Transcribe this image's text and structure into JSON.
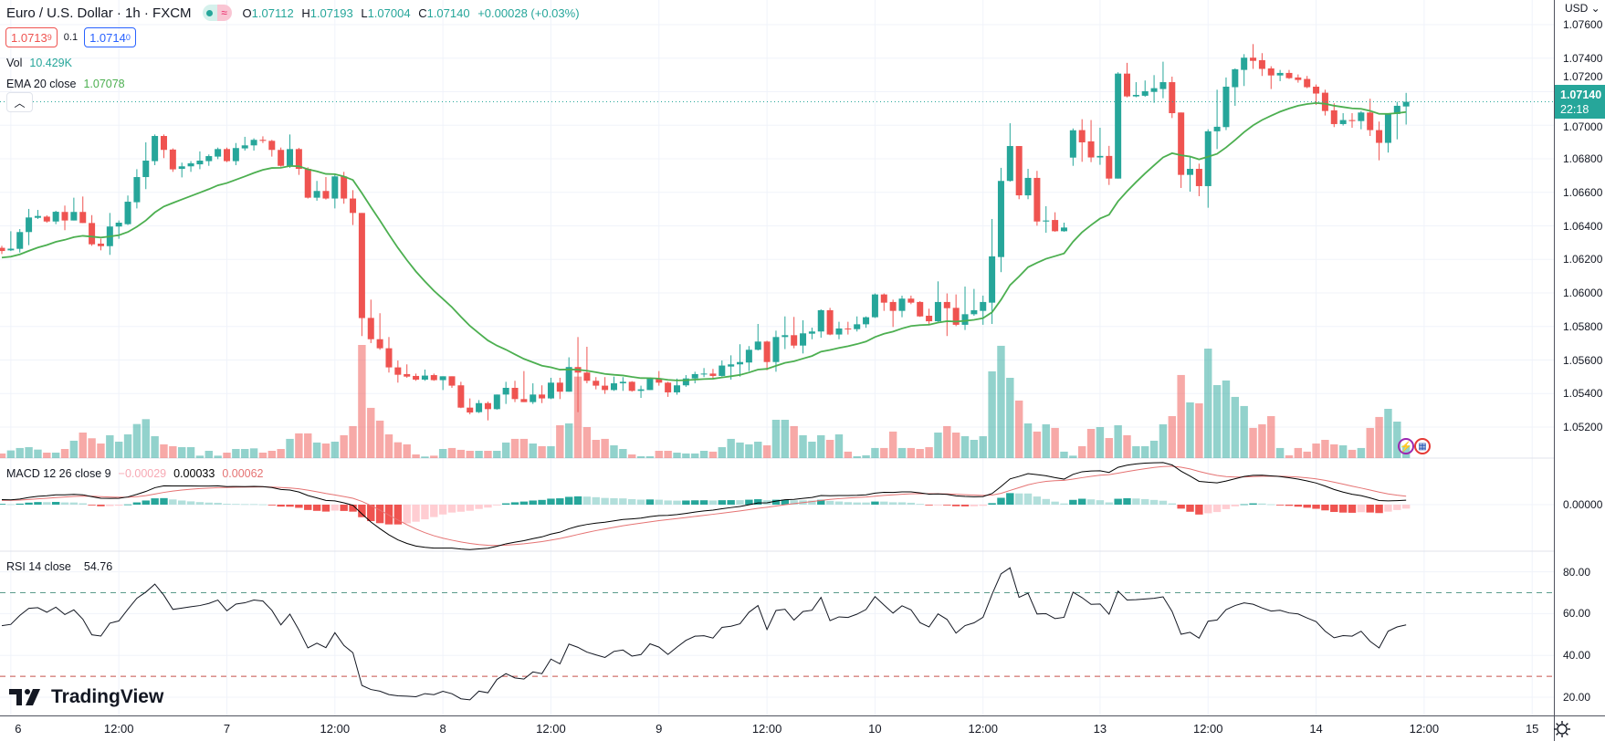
{
  "header": {
    "symbol_title": "Euro / U.S. Dollar · 1h · FXCM",
    "badge_alt_symbol": "≈",
    "ohlc": {
      "o_label": "O",
      "o": "1.07112",
      "h_label": "H",
      "h": "1.07193",
      "l_label": "L",
      "l": "1.07004",
      "c_label": "C",
      "c": "1.07140",
      "change": "+0.00028 (+0.03%)"
    },
    "bid_main": "1.0713",
    "bid_pip": "9",
    "spread": "0.1",
    "ask_main": "1.0714",
    "ask_pip": "0",
    "currency": "USD ⌄"
  },
  "legends": {
    "vol_label": "Vol",
    "vol_value": "10.429K",
    "ema_label": "EMA 20 close",
    "ema_value": "1.07078",
    "macd_label": "MACD 12 26 close 9",
    "macd_hist": "−0.00029",
    "macd_value": "0.00033",
    "macd_signal": "0.00062",
    "rsi_label": "RSI 14 close",
    "rsi_value": "54.76",
    "collapse_icon": "chevron-up"
  },
  "current_price": {
    "price": "1.07140",
    "countdown": "22:18"
  },
  "watermark": "TradingView",
  "colors": {
    "up": "#26a69a",
    "down": "#ef5350",
    "ema": "#4caf50",
    "macd": "#000000",
    "signal": "#e57373",
    "ask": "#2962ff"
  },
  "chart_data": {
    "type": "candlestick",
    "title": "Euro / U.S. Dollar · 1h · FXCM",
    "price_axis": {
      "min": 1.052,
      "max": 1.076,
      "step": 0.002,
      "ticks": [
        "1.07600",
        "1.07400",
        "1.07200",
        "1.07000",
        "1.06800",
        "1.06600",
        "1.06400",
        "1.06200",
        "1.06000",
        "1.05800",
        "1.05600",
        "1.05400",
        "1.05200"
      ]
    },
    "time_ticks": [
      {
        "label": "6",
        "bar": 1
      },
      {
        "label": "12:00",
        "bar": 13
      },
      {
        "label": "7",
        "bar": 25
      },
      {
        "label": "12:00",
        "bar": 37
      },
      {
        "label": "8",
        "bar": 49
      },
      {
        "label": "12:00",
        "bar": 61
      },
      {
        "label": "9",
        "bar": 73
      },
      {
        "label": "12:00",
        "bar": 85
      },
      {
        "label": "10",
        "bar": 97
      },
      {
        "label": "12:00",
        "bar": 109
      },
      {
        "label": "13",
        "bar": 122
      },
      {
        "label": "12:00",
        "bar": 134
      },
      {
        "label": "14",
        "bar": 146
      },
      {
        "label": "12:00",
        "bar": 158
      },
      {
        "label": "15",
        "bar": 170
      }
    ],
    "ohlc": [
      [
        1.06269,
        1.06281,
        1.06232,
        1.0625
      ],
      [
        1.06254,
        1.06368,
        1.0625,
        1.06264
      ],
      [
        1.06263,
        1.06381,
        1.06241,
        1.06363
      ],
      [
        1.06363,
        1.06501,
        1.06285,
        1.0645
      ],
      [
        1.06448,
        1.06495,
        1.06441,
        1.06459
      ],
      [
        1.06455,
        1.06463,
        1.06419,
        1.06426
      ],
      [
        1.06426,
        1.0649,
        1.0641,
        1.06484
      ],
      [
        1.06483,
        1.06521,
        1.06374,
        1.06432
      ],
      [
        1.06432,
        1.06568,
        1.06432,
        1.06483
      ],
      [
        1.06483,
        1.06575,
        1.06417,
        1.06417
      ],
      [
        1.06417,
        1.06464,
        1.06281,
        1.0629
      ],
      [
        1.06294,
        1.06323,
        1.06254,
        1.06279
      ],
      [
        1.06279,
        1.06477,
        1.06227,
        1.06396
      ],
      [
        1.06396,
        1.06432,
        1.06323,
        1.06419
      ],
      [
        1.0641,
        1.06581,
        1.06405,
        1.06544
      ],
      [
        1.06541,
        1.06738,
        1.06504,
        1.06691
      ],
      [
        1.06691,
        1.06898,
        1.06619,
        1.06789
      ],
      [
        1.06786,
        1.06945,
        1.06762,
        1.06936
      ],
      [
        1.06936,
        1.06945,
        1.06804,
        1.06853
      ],
      [
        1.06855,
        1.06862,
        1.06722,
        1.06737
      ],
      [
        1.0674,
        1.06777,
        1.06689,
        1.06755
      ],
      [
        1.06755,
        1.06786,
        1.06722,
        1.06773
      ],
      [
        1.06767,
        1.06844,
        1.06738,
        1.06789
      ],
      [
        1.06786,
        1.06826,
        1.06758,
        1.06816
      ],
      [
        1.06813,
        1.06867,
        1.06798,
        1.06858
      ],
      [
        1.06858,
        1.06867,
        1.0678,
        1.06786
      ],
      [
        1.06786,
        1.06894,
        1.06762,
        1.06864
      ],
      [
        1.06862,
        1.06931,
        1.06849,
        1.0688
      ],
      [
        1.0688,
        1.06922,
        1.06849,
        1.06913
      ],
      [
        1.06913,
        1.06934,
        1.06894,
        1.06907
      ],
      [
        1.06907,
        1.06913,
        1.06813,
        1.06853
      ],
      [
        1.06853,
        1.06867,
        1.06753,
        1.06758
      ],
      [
        1.06758,
        1.06945,
        1.06746,
        1.06858
      ],
      [
        1.06858,
        1.06865,
        1.06704,
        1.0674
      ],
      [
        1.0674,
        1.06749,
        1.06563,
        1.06568
      ],
      [
        1.06568,
        1.06668,
        1.0655,
        1.06608
      ],
      [
        1.06608,
        1.06691,
        1.06557,
        1.06563
      ],
      [
        1.06563,
        1.06713,
        1.06504,
        1.06695
      ],
      [
        1.06695,
        1.06722,
        1.06532,
        1.06563
      ],
      [
        1.06563,
        1.06613,
        1.06405,
        1.06477
      ],
      [
        1.06477,
        1.06477,
        1.05743,
        1.0585
      ],
      [
        1.05851,
        1.0596,
        1.05701,
        1.05724
      ],
      [
        1.05724,
        1.05879,
        1.05661,
        1.0567
      ],
      [
        1.0567,
        1.05737,
        1.05525,
        1.05556
      ],
      [
        1.05556,
        1.05597,
        1.05465,
        1.05512
      ],
      [
        1.05516,
        1.05574,
        1.05494,
        1.05501
      ],
      [
        1.05505,
        1.05519,
        1.05476,
        1.05483
      ],
      [
        1.05483,
        1.05543,
        1.05476,
        1.05507
      ],
      [
        1.0551,
        1.05519,
        1.05476,
        1.0548
      ],
      [
        1.0548,
        1.05503,
        1.05421,
        1.05503
      ],
      [
        1.05503,
        1.05503,
        1.05434,
        1.05447
      ],
      [
        1.05449,
        1.0547,
        1.05313,
        1.05316
      ],
      [
        1.05316,
        1.05371,
        1.05276,
        1.05287
      ],
      [
        1.05289,
        1.05361,
        1.05284,
        1.05343
      ],
      [
        1.05343,
        1.05352,
        1.0524,
        1.05307
      ],
      [
        1.05307,
        1.05394,
        1.05304,
        1.05394
      ],
      [
        1.05394,
        1.0547,
        1.05338,
        1.05434
      ],
      [
        1.05434,
        1.05476,
        1.05349,
        1.05367
      ],
      [
        1.05367,
        1.05534,
        1.05349,
        1.05349
      ],
      [
        1.05349,
        1.05461,
        1.05338,
        1.05394
      ],
      [
        1.05394,
        1.05449,
        1.05343,
        1.05371
      ],
      [
        1.05371,
        1.05494,
        1.05367,
        1.05465
      ],
      [
        1.05465,
        1.05494,
        1.05367,
        1.05411
      ],
      [
        1.05411,
        1.05616,
        1.05411,
        1.05558
      ],
      [
        1.05558,
        1.05737,
        1.05289,
        1.05525
      ],
      [
        1.05525,
        1.05679,
        1.05461,
        1.05476
      ],
      [
        1.05476,
        1.05498,
        1.05425,
        1.05447
      ],
      [
        1.05447,
        1.05498,
        1.05398,
        1.05421
      ],
      [
        1.05421,
        1.05501,
        1.05416,
        1.05461
      ],
      [
        1.05461,
        1.05498,
        1.05416,
        1.0547
      ],
      [
        1.0547,
        1.05474,
        1.05411,
        1.05416
      ],
      [
        1.05416,
        1.05447,
        1.05374,
        1.05425
      ],
      [
        1.05421,
        1.05494,
        1.05421,
        1.0549
      ],
      [
        1.0549,
        1.05534,
        1.05447,
        1.05465
      ],
      [
        1.05465,
        1.0547,
        1.0538,
        1.05407
      ],
      [
        1.05407,
        1.05489,
        1.05393,
        1.05449
      ],
      [
        1.05449,
        1.0551,
        1.0544,
        1.0549
      ],
      [
        1.0549,
        1.0553,
        1.05461,
        1.05516
      ],
      [
        1.05516,
        1.05552,
        1.05498,
        1.05519
      ],
      [
        1.05519,
        1.05547,
        1.05487,
        1.05505
      ],
      [
        1.05505,
        1.05597,
        1.05501,
        1.05567
      ],
      [
        1.05561,
        1.05628,
        1.05483,
        1.05574
      ],
      [
        1.05574,
        1.05694,
        1.05501,
        1.05588
      ],
      [
        1.05585,
        1.05683,
        1.05534,
        1.05661
      ],
      [
        1.05661,
        1.05815,
        1.05657,
        1.0571
      ],
      [
        1.0571,
        1.05715,
        1.05539,
        1.05588
      ],
      [
        1.05588,
        1.05775,
        1.0553,
        1.05737
      ],
      [
        1.05737,
        1.0586,
        1.05665,
        1.05748
      ],
      [
        1.05748,
        1.05857,
        1.0567,
        1.05686
      ],
      [
        1.05686,
        1.05837,
        1.05639,
        1.05759
      ],
      [
        1.05757,
        1.05793,
        1.05724,
        1.0577
      ],
      [
        1.0577,
        1.05902,
        1.05733,
        1.05897
      ],
      [
        1.05897,
        1.05911,
        1.05748,
        1.05752
      ],
      [
        1.05752,
        1.05828,
        1.05724,
        1.05788
      ],
      [
        1.05788,
        1.05828,
        1.05752,
        1.05784
      ],
      [
        1.05784,
        1.0586,
        1.0577,
        1.05813
      ],
      [
        1.05813,
        1.0586,
        1.05792,
        1.05855
      ],
      [
        1.05855,
        1.05997,
        1.05851,
        1.05991
      ],
      [
        1.05991,
        1.05997,
        1.05893,
        1.05942
      ],
      [
        1.05946,
        1.0596,
        1.05797,
        1.05893
      ],
      [
        1.05893,
        1.05984,
        1.05855,
        1.05966
      ],
      [
        1.05966,
        1.05984,
        1.05933,
        1.05942
      ],
      [
        1.05946,
        1.05951,
        1.05857,
        1.0586
      ],
      [
        1.05864,
        1.05906,
        1.05815,
        1.05831
      ],
      [
        1.05831,
        1.06069,
        1.05828,
        1.05946
      ],
      [
        1.05946,
        1.05997,
        1.05743,
        1.05909
      ],
      [
        1.05911,
        1.05991,
        1.05802,
        1.0581
      ],
      [
        1.0581,
        1.06038,
        1.05779,
        1.05873
      ],
      [
        1.05873,
        1.06024,
        1.05864,
        1.05897
      ],
      [
        1.05893,
        1.05984,
        1.0581,
        1.05946
      ],
      [
        1.05942,
        1.06441,
        1.05815,
        1.06218
      ],
      [
        1.06214,
        1.06746,
        1.06124,
        1.06668
      ],
      [
        1.06668,
        1.07012,
        1.06664,
        1.06876
      ],
      [
        1.06876,
        1.06876,
        1.06559,
        1.06582
      ],
      [
        1.06582,
        1.0674,
        1.06559,
        1.06686
      ],
      [
        1.06686,
        1.06728,
        1.06401,
        1.06426
      ],
      [
        1.06426,
        1.06517,
        1.06359,
        1.06432
      ],
      [
        1.06435,
        1.06481,
        1.06365,
        1.06368
      ],
      [
        1.06368,
        1.06419,
        1.06365,
        1.0639
      ],
      [
        1.06807,
        1.06981,
        1.06758,
        1.0697
      ],
      [
        1.06971,
        1.07036,
        1.06782,
        1.06898
      ],
      [
        1.06904,
        1.07031,
        1.0678,
        1.06808
      ],
      [
        1.06808,
        1.06985,
        1.06764,
        1.06817
      ],
      [
        1.06817,
        1.06877,
        1.06644,
        1.06682
      ],
      [
        1.06682,
        1.07316,
        1.06682,
        1.07308
      ],
      [
        1.07308,
        1.07372,
        1.07167,
        1.07172
      ],
      [
        1.07172,
        1.07257,
        1.07167,
        1.07181
      ],
      [
        1.07176,
        1.07267,
        1.0717,
        1.07203
      ],
      [
        1.07199,
        1.07299,
        1.07134,
        1.07221
      ],
      [
        1.07216,
        1.07379,
        1.07161,
        1.07257
      ],
      [
        1.07257,
        1.0729,
        1.07043,
        1.07072
      ],
      [
        1.07076,
        1.07076,
        1.06626,
        1.06704
      ],
      [
        1.06704,
        1.06813,
        1.06604,
        1.0674
      ],
      [
        1.0674,
        1.06771,
        1.06577,
        1.06637
      ],
      [
        1.06637,
        1.06976,
        1.06508,
        1.06964
      ],
      [
        1.06964,
        1.07212,
        1.06858,
        1.06991
      ],
      [
        1.06989,
        1.07285,
        1.06971,
        1.0723
      ],
      [
        1.07227,
        1.07339,
        1.07116,
        1.07334
      ],
      [
        1.0733,
        1.07424,
        1.07234,
        1.07403
      ],
      [
        1.07403,
        1.07484,
        1.07336,
        1.07384
      ],
      [
        1.07388,
        1.0743,
        1.07294,
        1.07336
      ],
      [
        1.07339,
        1.07352,
        1.07216,
        1.07297
      ],
      [
        1.07297,
        1.0733,
        1.07263,
        1.07312
      ],
      [
        1.07312,
        1.0733,
        1.07276,
        1.07281
      ],
      [
        1.07285,
        1.07303,
        1.07254,
        1.0727
      ],
      [
        1.07276,
        1.07294,
        1.07221,
        1.07227
      ],
      [
        1.0723,
        1.07243,
        1.07121,
        1.07189
      ],
      [
        1.07194,
        1.07212,
        1.07058,
        1.07085
      ],
      [
        1.07089,
        1.07131,
        1.06989,
        1.07007
      ],
      [
        1.07007,
        1.07072,
        1.06998,
        1.07031
      ],
      [
        1.07031,
        1.07072,
        1.06985,
        1.07025
      ],
      [
        1.07025,
        1.07085,
        1.06976,
        1.07076
      ],
      [
        1.07076,
        1.07158,
        1.06936,
        1.06971
      ],
      [
        1.06971,
        1.07022,
        1.06791,
        1.06895
      ],
      [
        1.06895,
        1.07067,
        1.06837,
        1.07067
      ],
      [
        1.07067,
        1.0714,
        1.06916,
        1.07116
      ],
      [
        1.07112,
        1.07193,
        1.07004,
        1.0714
      ]
    ],
    "volume_k": [
      3.8,
      6.3,
      8.3,
      9,
      7,
      4.5,
      4.5,
      7.5,
      14.3,
      21,
      16.3,
      12,
      18.8,
      13.5,
      19.5,
      28,
      32,
      18,
      11.3,
      9.8,
      9,
      9,
      2,
      6,
      2,
      4.5,
      7.5,
      7.5,
      8,
      4.5,
      6,
      7.5,
      15.8,
      20.3,
      20.3,
      12.8,
      12,
      13.5,
      18.8,
      26.3,
      93,
      41.3,
      30.8,
      19.5,
      13,
      11.3,
      3,
      1.3,
      2,
      7.5,
      8.3,
      6.8,
      6,
      6,
      6,
      6,
      12.8,
      15.8,
      15.8,
      12,
      9.8,
      9.8,
      27,
      28.5,
      67,
      25.5,
      15,
      15.8,
      10.5,
      7.5,
      3,
      1.5,
      1.5,
      6,
      6,
      4.5,
      3.8,
      3.8,
      6,
      5.3,
      9,
      15.8,
      12.8,
      11.3,
      13.5,
      10.5,
      31.5,
      31.5,
      26.3,
      18.8,
      13.5,
      18.8,
      15,
      19.5,
      5.3,
      1.5,
      2.3,
      8.3,
      8.3,
      21.8,
      8.3,
      8.3,
      7.5,
      9,
      21,
      26.3,
      21,
      18,
      15,
      18,
      71.3,
      92.3,
      66,
      47.3,
      28.5,
      21.8,
      27.8,
      24.8,
      5.3,
      2,
      9.8,
      24,
      25.5,
      16.5,
      27,
      18.8,
      9.8,
      9.8,
      14.3,
      27.8,
      34.5,
      68.3,
      45.8,
      45,
      90,
      60,
      63.8,
      50.3,
      42.8,
      24.8,
      27.8,
      34.5,
      8.3,
      2.3,
      8.3,
      5.3,
      12,
      15,
      11.3,
      10.5,
      6.8,
      8.3,
      24.8,
      33.8,
      40.5,
      30,
      10.429
    ],
    "indicators": {
      "ema": {
        "period": 20,
        "seed": 1.06207
      },
      "macd": {
        "fast": 12,
        "slow": 26,
        "signal": 9,
        "seed_fast": 1.0625,
        "seed_slow": 1.0621,
        "seed_signal": 0.0003,
        "axis_tick": "0.00000"
      },
      "rsi": {
        "period": 14,
        "seed_gain": 0.00045,
        "seed_loss": 0.00038,
        "overbought": 70,
        "oversold": 30,
        "ticks": [
          "80.00",
          "60.00",
          "40.00",
          "20.00"
        ]
      }
    },
    "last_price": 1.0714
  }
}
